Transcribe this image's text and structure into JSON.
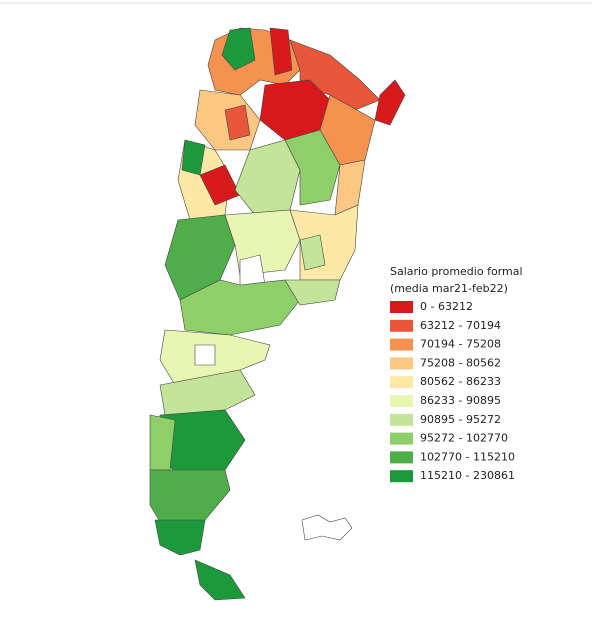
{
  "legend": {
    "title": "Salario promedio formal",
    "subtitle": "(media mar21-feb22)",
    "items": [
      {
        "label": "0 - 63212",
        "color": "#d7191c"
      },
      {
        "label": "63212 - 70194",
        "color": "#e9573a"
      },
      {
        "label": "70194 - 75208",
        "color": "#f5924f"
      },
      {
        "label": "75208 - 80562",
        "color": "#fcc783"
      },
      {
        "label": "80562 - 86233",
        "color": "#fee8a6"
      },
      {
        "label": "86233 - 90895",
        "color": "#e8f5b3"
      },
      {
        "label": "90895 - 95272",
        "color": "#c2e59a"
      },
      {
        "label": "95272 - 102770",
        "color": "#8ecf69"
      },
      {
        "label": "102770 - 115210",
        "color": "#50ae4a"
      },
      {
        "label": "115210 - 230861",
        "color": "#1c9a3b"
      }
    ]
  }
}
